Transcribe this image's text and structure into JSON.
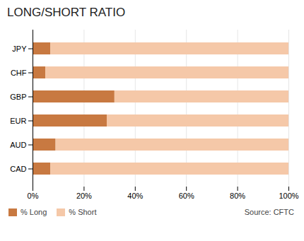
{
  "chart_data": {
    "type": "bar",
    "orientation": "horizontal",
    "stacked": true,
    "title": "LONG/SHORT RATIO",
    "categories": [
      "CAD",
      "AUD",
      "EUR",
      "GBP",
      "CHF",
      "JPY"
    ],
    "series": [
      {
        "name": "% Long",
        "color": "#c87941",
        "values": [
          7,
          9,
          29,
          32,
          5,
          7
        ]
      },
      {
        "name": "% Short",
        "color": "#f5c8a8",
        "values": [
          93,
          91,
          71,
          68,
          95,
          93
        ]
      }
    ],
    "xlim": [
      0,
      100
    ],
    "xticks": [
      {
        "value": 0,
        "label": "0%"
      },
      {
        "value": 20,
        "label": "20%"
      },
      {
        "value": 40,
        "label": "40%"
      },
      {
        "value": 60,
        "label": "60%"
      },
      {
        "value": 80,
        "label": "80%"
      },
      {
        "value": 100,
        "label": "100%"
      }
    ],
    "grid": true,
    "legend": "bottom",
    "annotations": [
      "Source: CFTC"
    ]
  }
}
